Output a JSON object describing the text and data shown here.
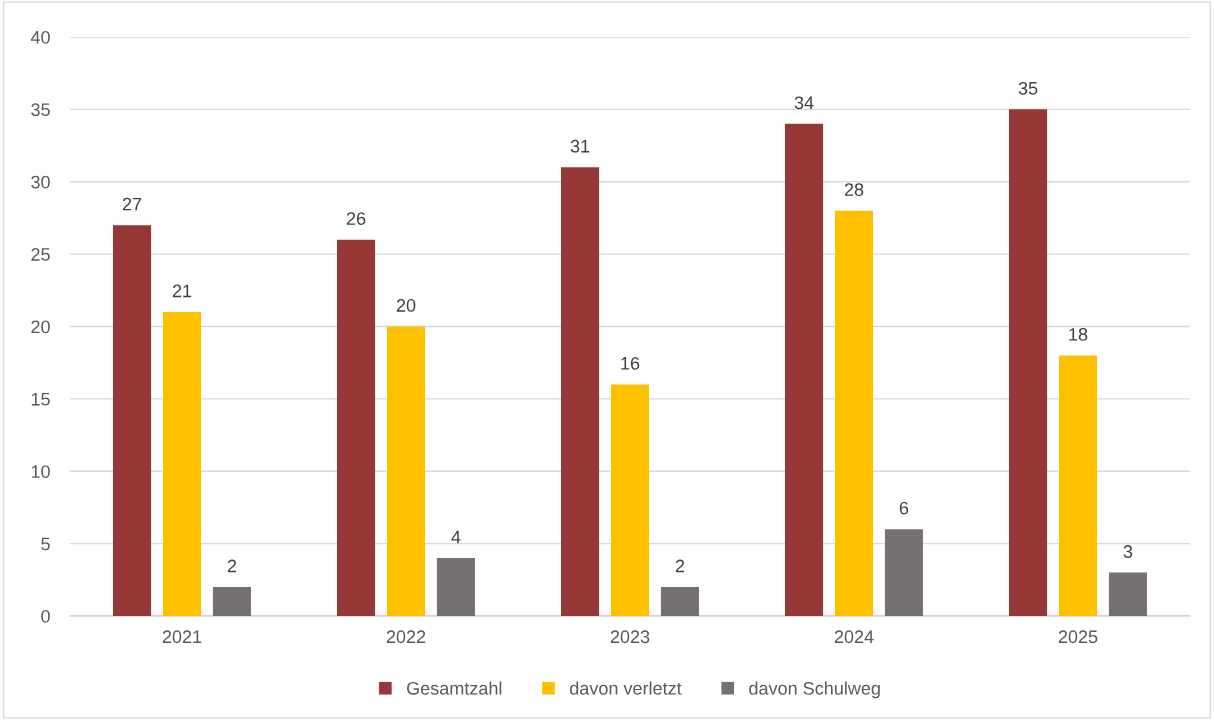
{
  "chart_data": {
    "type": "bar",
    "categories": [
      "2021",
      "2022",
      "2023",
      "2024",
      "2025"
    ],
    "series": [
      {
        "name": "Gesamtzahl",
        "color": "#953735",
        "values": [
          27,
          26,
          31,
          34,
          35
        ]
      },
      {
        "name": "davon verletzt",
        "color": "#ffc000",
        "values": [
          21,
          20,
          16,
          28,
          18
        ]
      },
      {
        "name": "davon Schulweg",
        "color": "#767171",
        "values": [
          2,
          4,
          2,
          6,
          3
        ]
      }
    ],
    "ylim": [
      0,
      40
    ],
    "yticks": [
      0,
      5,
      10,
      15,
      20,
      25,
      30,
      35,
      40
    ],
    "grid": "y",
    "legend": "bottom",
    "data_labels": true
  }
}
